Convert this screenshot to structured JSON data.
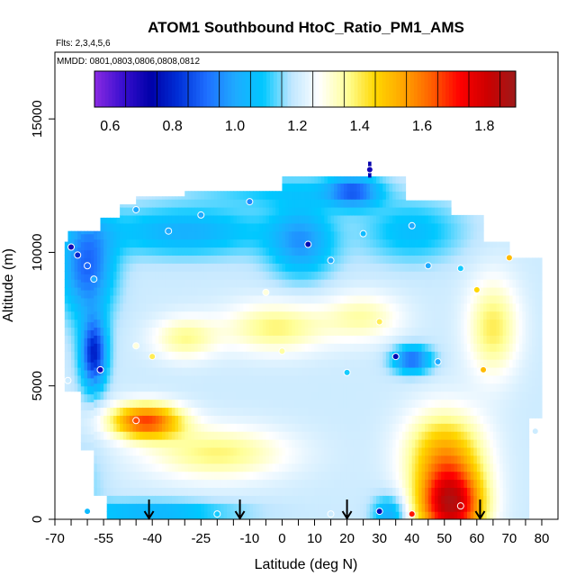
{
  "chart_data": {
    "type": "heatmap",
    "title": "ATOM1 Southbound HtoC_Ratio_PM1_AMS",
    "flights_text": "Flts: 2,3,4,5,6",
    "dates_text": "MMDD: 0801,0803,0806,0808,0812",
    "xlabel": "Latitude (deg N)",
    "ylabel": "Altitude (m)",
    "xlim": [
      -70,
      85
    ],
    "ylim": [
      0,
      17500
    ],
    "x_ticks": [
      "-70",
      "-55",
      "-40",
      "-25",
      "-10",
      "0",
      "10",
      "20",
      "30",
      "40",
      "50",
      "60",
      "70",
      "80"
    ],
    "x_tick_values": [
      -70,
      -55,
      -40,
      -25,
      -10,
      0,
      10,
      20,
      30,
      40,
      50,
      60,
      70,
      80
    ],
    "x_minor_ticks": [
      -65,
      -60,
      -50,
      -45,
      -35,
      -30,
      -20,
      -15,
      -5,
      5,
      15,
      25,
      35,
      45,
      55,
      65,
      75
    ],
    "y_ticks": [
      "0",
      "5000",
      "10000",
      "15000"
    ],
    "y_tick_values": [
      0,
      5000,
      10000,
      15000
    ],
    "colorbar": {
      "range": [
        0.55,
        1.9
      ],
      "ticks": [
        "0.6",
        "0.8",
        "1.0",
        "1.2",
        "1.4",
        "1.6",
        "1.8"
      ],
      "tick_values": [
        0.6,
        0.8,
        1.0,
        1.2,
        1.4,
        1.6,
        1.8
      ],
      "colors": [
        "#8a2be2",
        "#3a0fd0",
        "#0000a8",
        "#0030d8",
        "#1e6fff",
        "#1faaff",
        "#00c8ff",
        "#bfe6ff",
        "#ffffff",
        "#ffff99",
        "#ffd700",
        "#ffa500",
        "#ff6000",
        "#ff0000",
        "#cc0000",
        "#9e1a1a"
      ]
    },
    "arrows_latitude": [
      -41,
      -13,
      20,
      61
    ],
    "profile_sample_points": [
      {
        "lat": -65,
        "alt": 10200,
        "v": 0.7
      },
      {
        "lat": -63,
        "alt": 9900,
        "v": 0.8
      },
      {
        "lat": -60,
        "alt": 9500,
        "v": 0.9
      },
      {
        "lat": -58,
        "alt": 9000,
        "v": 1.0
      },
      {
        "lat": -56,
        "alt": 5600,
        "v": 0.7
      },
      {
        "lat": -66,
        "alt": 5200,
        "v": 1.2
      },
      {
        "lat": -45,
        "alt": 6500,
        "v": 1.3
      },
      {
        "lat": -40,
        "alt": 6100,
        "v": 1.4
      },
      {
        "lat": -45,
        "alt": 3700,
        "v": 1.65
      },
      {
        "lat": -45,
        "alt": 11600,
        "v": 1.0
      },
      {
        "lat": -35,
        "alt": 10800,
        "v": 1.0
      },
      {
        "lat": -25,
        "alt": 11400,
        "v": 1.0
      },
      {
        "lat": -10,
        "alt": 11900,
        "v": 0.95
      },
      {
        "lat": -5,
        "alt": 8500,
        "v": 1.3
      },
      {
        "lat": 0,
        "alt": 6300,
        "v": 1.35
      },
      {
        "lat": 8,
        "alt": 10300,
        "v": 0.75
      },
      {
        "lat": 15,
        "alt": 9700,
        "v": 1.0
      },
      {
        "lat": 20,
        "alt": 5500,
        "v": 1.1
      },
      {
        "lat": 25,
        "alt": 10700,
        "v": 1.05
      },
      {
        "lat": 27,
        "alt": 13100,
        "v": 0.7
      },
      {
        "lat": 30,
        "alt": 7400,
        "v": 1.4
      },
      {
        "lat": 35,
        "alt": 6100,
        "v": 0.75
      },
      {
        "lat": 40,
        "alt": 11000,
        "v": 1.0
      },
      {
        "lat": 45,
        "alt": 9500,
        "v": 1.0
      },
      {
        "lat": 48,
        "alt": 5900,
        "v": 1.0
      },
      {
        "lat": 55,
        "alt": 9400,
        "v": 1.1
      },
      {
        "lat": 60,
        "alt": 8600,
        "v": 1.45
      },
      {
        "lat": 62,
        "alt": 5600,
        "v": 1.5
      },
      {
        "lat": 70,
        "alt": 9800,
        "v": 1.5
      },
      {
        "lat": 78,
        "alt": 3300,
        "v": 1.2
      },
      {
        "lat": -60,
        "alt": 300,
        "v": 1.05
      },
      {
        "lat": -20,
        "alt": 200,
        "v": 1.1
      },
      {
        "lat": 15,
        "alt": 200,
        "v": 1.2
      },
      {
        "lat": 30,
        "alt": 300,
        "v": 0.75
      },
      {
        "lat": 40,
        "alt": 200,
        "v": 1.7
      },
      {
        "lat": 55,
        "alt": 500,
        "v": 1.8
      }
    ],
    "grid": false
  }
}
